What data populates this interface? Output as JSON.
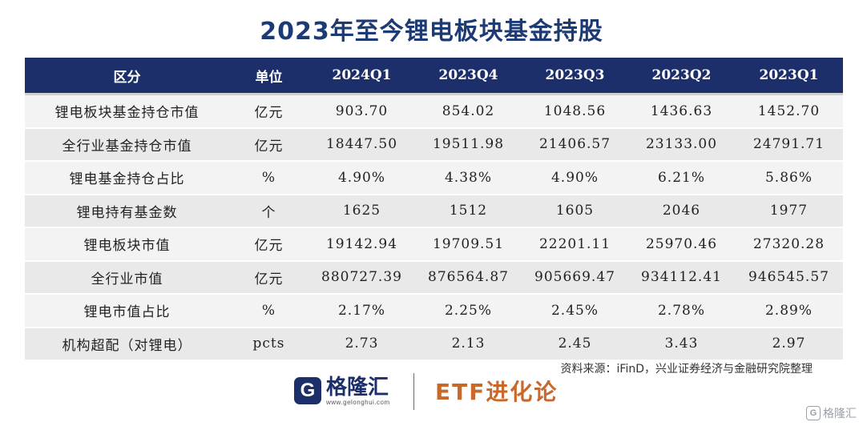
{
  "title": "2023年至今锂电板块基金持股",
  "table": {
    "headers": [
      "区分",
      "单位",
      "2024Q1",
      "2023Q4",
      "2023Q3",
      "2023Q2",
      "2023Q1"
    ],
    "rows": [
      [
        "锂电板块基金持仓市值",
        "亿元",
        "903.70",
        "854.02",
        "1048.56",
        "1436.63",
        "1452.70"
      ],
      [
        "全行业基金持仓市值",
        "亿元",
        "18447.50",
        "19511.98",
        "21406.57",
        "23133.00",
        "24791.71"
      ],
      [
        "锂电基金持仓占比",
        "%",
        "4.90%",
        "4.38%",
        "4.90%",
        "6.21%",
        "5.86%"
      ],
      [
        "锂电持有基金数",
        "个",
        "1625",
        "1512",
        "1605",
        "2046",
        "1977"
      ],
      [
        "锂电板块市值",
        "亿元",
        "19142.94",
        "19709.51",
        "22201.11",
        "25970.46",
        "27320.28"
      ],
      [
        "全行业市值",
        "亿元",
        "880727.39",
        "876564.87",
        "905669.47",
        "934112.41",
        "946545.57"
      ],
      [
        "锂电市值占比",
        "%",
        "2.17%",
        "2.25%",
        "2.45%",
        "2.78%",
        "2.89%"
      ],
      [
        "机构超配（对锂电）",
        "pcts",
        "2.73",
        "2.13",
        "2.45",
        "3.43",
        "2.97"
      ]
    ]
  },
  "source": "资料来源：iFinD，兴业证券经济与金融研究院整理",
  "brand": {
    "logo_letter": "G",
    "name": "格隆汇",
    "url": "www.gelonghui.com",
    "etf_label": "ETF进化论"
  },
  "watermark": {
    "logo_letter": "G",
    "text": "格隆汇"
  },
  "colors": {
    "header_bg": "#1c2f6b",
    "title": "#1c3a74",
    "etf": "#c8692b"
  }
}
